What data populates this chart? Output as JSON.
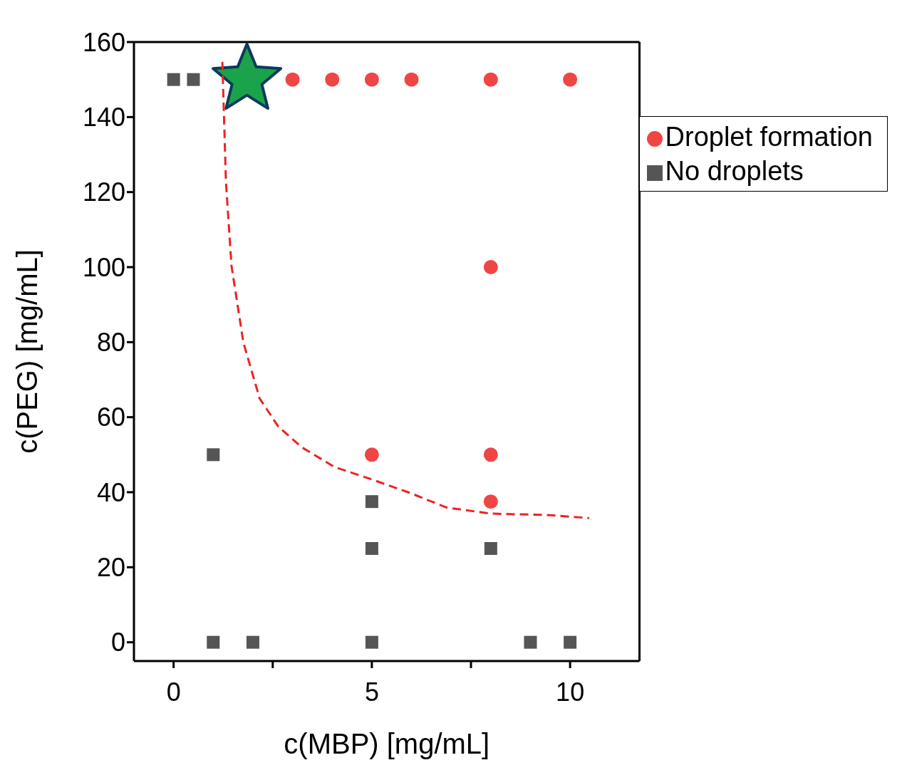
{
  "chart_data": {
    "type": "scatter",
    "xlabel": "c(MBP) [mg/mL]",
    "ylabel": "c(PEG) [mg/mL]",
    "xlim": [
      -1,
      11.75
    ],
    "ylim": [
      -5,
      160
    ],
    "xticks": [
      0,
      {
        "value": 2.5,
        "label": null
      },
      5,
      {
        "value": 7.5,
        "label": null
      },
      10
    ],
    "yticks": [
      0,
      20,
      40,
      60,
      80,
      100,
      120,
      140,
      160
    ],
    "grid": false,
    "legend": "top right",
    "series": [
      {
        "name": "No droplets",
        "color": "#555555",
        "marker": "square",
        "x": [
          0,
          0.5,
          1,
          1,
          2,
          5,
          5,
          5,
          8,
          9,
          10
        ],
        "values": [
          150,
          150,
          50,
          0,
          0,
          37.5,
          25,
          0,
          25,
          0,
          0
        ]
      },
      {
        "name": "Droplet formation",
        "color": "#f04545",
        "marker": "circle",
        "x": [
          3,
          4,
          5,
          6,
          8,
          10,
          8,
          5,
          8,
          8
        ],
        "values": [
          150,
          150,
          150,
          150,
          150,
          150,
          100,
          50,
          50,
          37.5
        ]
      },
      {
        "color": "#1aa34a",
        "marker": "star",
        "x": [
          1.85
        ],
        "values": [
          150
        ]
      },
      {
        "type": "line",
        "color": "#ee2222",
        "line_style": "dashed",
        "marker": "none",
        "x": [
          1.23,
          1.32,
          1.46,
          1.76,
          2.17,
          2.64,
          3.23,
          4.06,
          5,
          5.94,
          6.89,
          8,
          9.48,
          10.48
        ],
        "values": [
          154.7,
          122.7,
          100.4,
          79.9,
          65,
          57.5,
          52,
          46.7,
          43.4,
          39.9,
          35.9,
          34.3,
          33.9,
          33.1
        ]
      }
    ]
  }
}
